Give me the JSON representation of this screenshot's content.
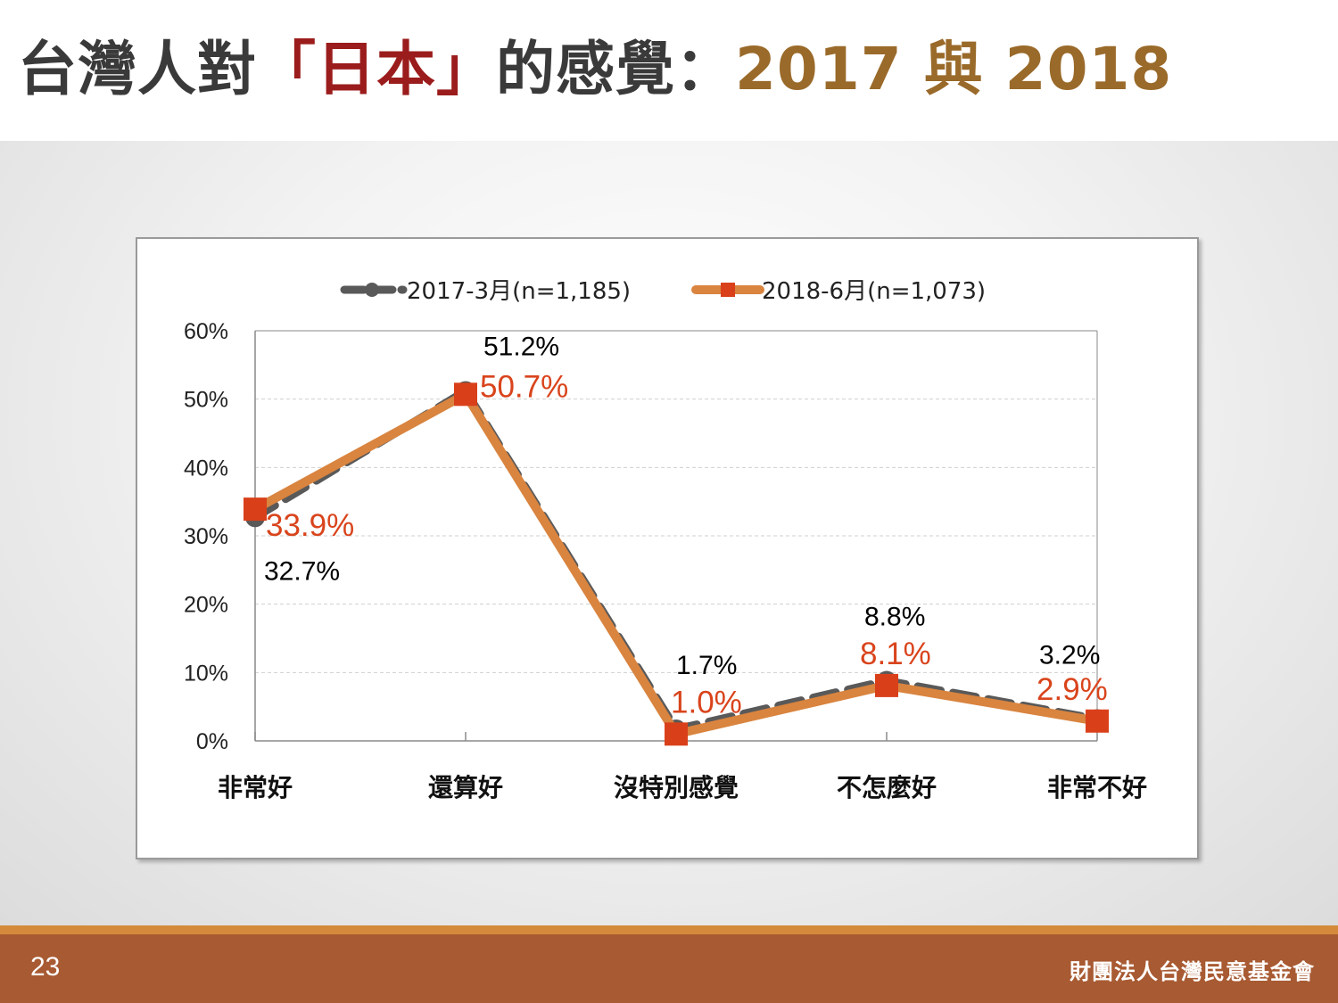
{
  "slide": {
    "title_part1": "台灣人對",
    "title_part2": "「日本」",
    "title_part3": "的感覺：",
    "title_part4": "2017 與 2018",
    "page_number": "23",
    "organization": "財團法人台灣民意基金會",
    "colors": {
      "title_gray": "#3a3a3a",
      "title_red": "#9b1c1c",
      "title_brown": "#9a6a2a",
      "footer": "#a85a32",
      "footer_line": "#d48a3a"
    }
  },
  "chart_data": {
    "type": "line",
    "categories": [
      "非常好",
      "還算好",
      "沒特別感覺",
      "不怎麼好",
      "非常不好"
    ],
    "ylim": [
      0,
      60
    ],
    "yticks": [
      0,
      10,
      20,
      30,
      40,
      50,
      60
    ],
    "ytick_labels": [
      "0%",
      "10%",
      "20%",
      "30%",
      "40%",
      "50%",
      "60%"
    ],
    "grid": true,
    "legend_position": "top",
    "series": [
      {
        "name": "2017-3月(n=1,185)",
        "values": [
          32.7,
          51.2,
          1.7,
          8.8,
          3.2
        ],
        "labels": [
          "32.7%",
          "51.2%",
          "1.7%",
          "8.8%",
          "3.2%"
        ],
        "color": "#595959",
        "label_color": "#000000",
        "style": "dashed",
        "marker": "circle"
      },
      {
        "name": "2018-6月(n=1,073)",
        "values": [
          33.9,
          50.7,
          1.0,
          8.1,
          2.9
        ],
        "labels": [
          "33.9%",
          "50.7%",
          "1.0%",
          "8.1%",
          "2.9%"
        ],
        "color": "#d9843f",
        "label_color": "#d9441c",
        "marker_color": "#d9401a",
        "style": "solid",
        "marker": "square"
      }
    ]
  }
}
